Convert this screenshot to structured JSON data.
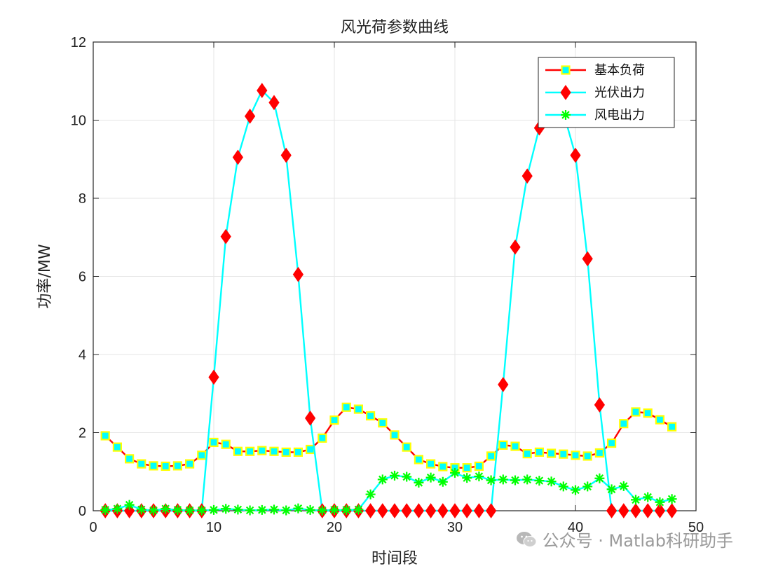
{
  "chart_data": {
    "type": "line",
    "title": "风光荷参数曲线",
    "xlabel": "时间段",
    "ylabel": "功率/MW",
    "xlim": [
      0,
      50
    ],
    "ylim": [
      0,
      12
    ],
    "xticks": [
      0,
      10,
      20,
      30,
      40,
      50
    ],
    "yticks": [
      0,
      2,
      4,
      6,
      8,
      10,
      12
    ],
    "grid": true,
    "legend_position": "top-right",
    "x": [
      1,
      2,
      3,
      4,
      5,
      6,
      7,
      8,
      9,
      10,
      11,
      12,
      13,
      14,
      15,
      16,
      17,
      18,
      19,
      20,
      21,
      22,
      23,
      24,
      25,
      26,
      27,
      28,
      29,
      30,
      31,
      32,
      33,
      34,
      35,
      36,
      37,
      38,
      39,
      40,
      41,
      42,
      43,
      44,
      45,
      46,
      47,
      48
    ],
    "series": [
      {
        "name": "基本负荷",
        "line_color": "#ff0000",
        "marker": "square",
        "marker_face": "#00ffff",
        "marker_edge": "#ffff00",
        "values": [
          1.92,
          1.63,
          1.33,
          1.2,
          1.15,
          1.14,
          1.15,
          1.2,
          1.42,
          1.75,
          1.7,
          1.52,
          1.52,
          1.54,
          1.52,
          1.5,
          1.5,
          1.57,
          1.86,
          2.32,
          2.65,
          2.6,
          2.43,
          2.25,
          1.94,
          1.63,
          1.31,
          1.2,
          1.13,
          1.1,
          1.1,
          1.14,
          1.4,
          1.68,
          1.65,
          1.46,
          1.5,
          1.47,
          1.45,
          1.42,
          1.4,
          1.48,
          1.73,
          2.23,
          2.53,
          2.5,
          2.33,
          2.15
        ]
      },
      {
        "name": "光伏出力",
        "line_color": "#00ffff",
        "marker": "diamond",
        "marker_face": "#ff0000",
        "marker_edge": "#ff0000",
        "values": [
          0,
          0,
          0,
          0,
          0,
          0,
          0,
          0,
          0,
          3.42,
          7.02,
          9.05,
          10.1,
          10.76,
          10.45,
          9.1,
          6.05,
          2.37,
          0,
          0,
          0,
          0,
          0,
          0,
          0,
          0,
          0,
          0,
          0,
          0,
          0,
          0,
          0,
          3.23,
          6.75,
          8.57,
          9.8,
          10.5,
          10.2,
          9.1,
          6.45,
          2.71,
          0,
          0,
          0,
          0,
          0,
          0
        ]
      },
      {
        "name": "风电出力",
        "line_color": "#00ffff",
        "marker": "asterisk",
        "marker_face": "#00ff00",
        "marker_edge": "#00ff00",
        "values": [
          0.02,
          0.05,
          0.15,
          0.03,
          0.01,
          0.05,
          0.02,
          0.01,
          0.01,
          0.02,
          0.05,
          0.03,
          0.01,
          0.02,
          0.03,
          0.01,
          0.06,
          0.02,
          0.01,
          0.02,
          0.02,
          0.03,
          0.42,
          0.8,
          0.9,
          0.87,
          0.72,
          0.85,
          0.74,
          0.97,
          0.84,
          0.88,
          0.78,
          0.8,
          0.78,
          0.8,
          0.77,
          0.75,
          0.62,
          0.53,
          0.62,
          0.83,
          0.55,
          0.63,
          0.28,
          0.35,
          0.22,
          0.3
        ]
      }
    ]
  },
  "watermark": {
    "text": "公众号 · Matlab科研助手",
    "icon": "wechat-icon"
  }
}
